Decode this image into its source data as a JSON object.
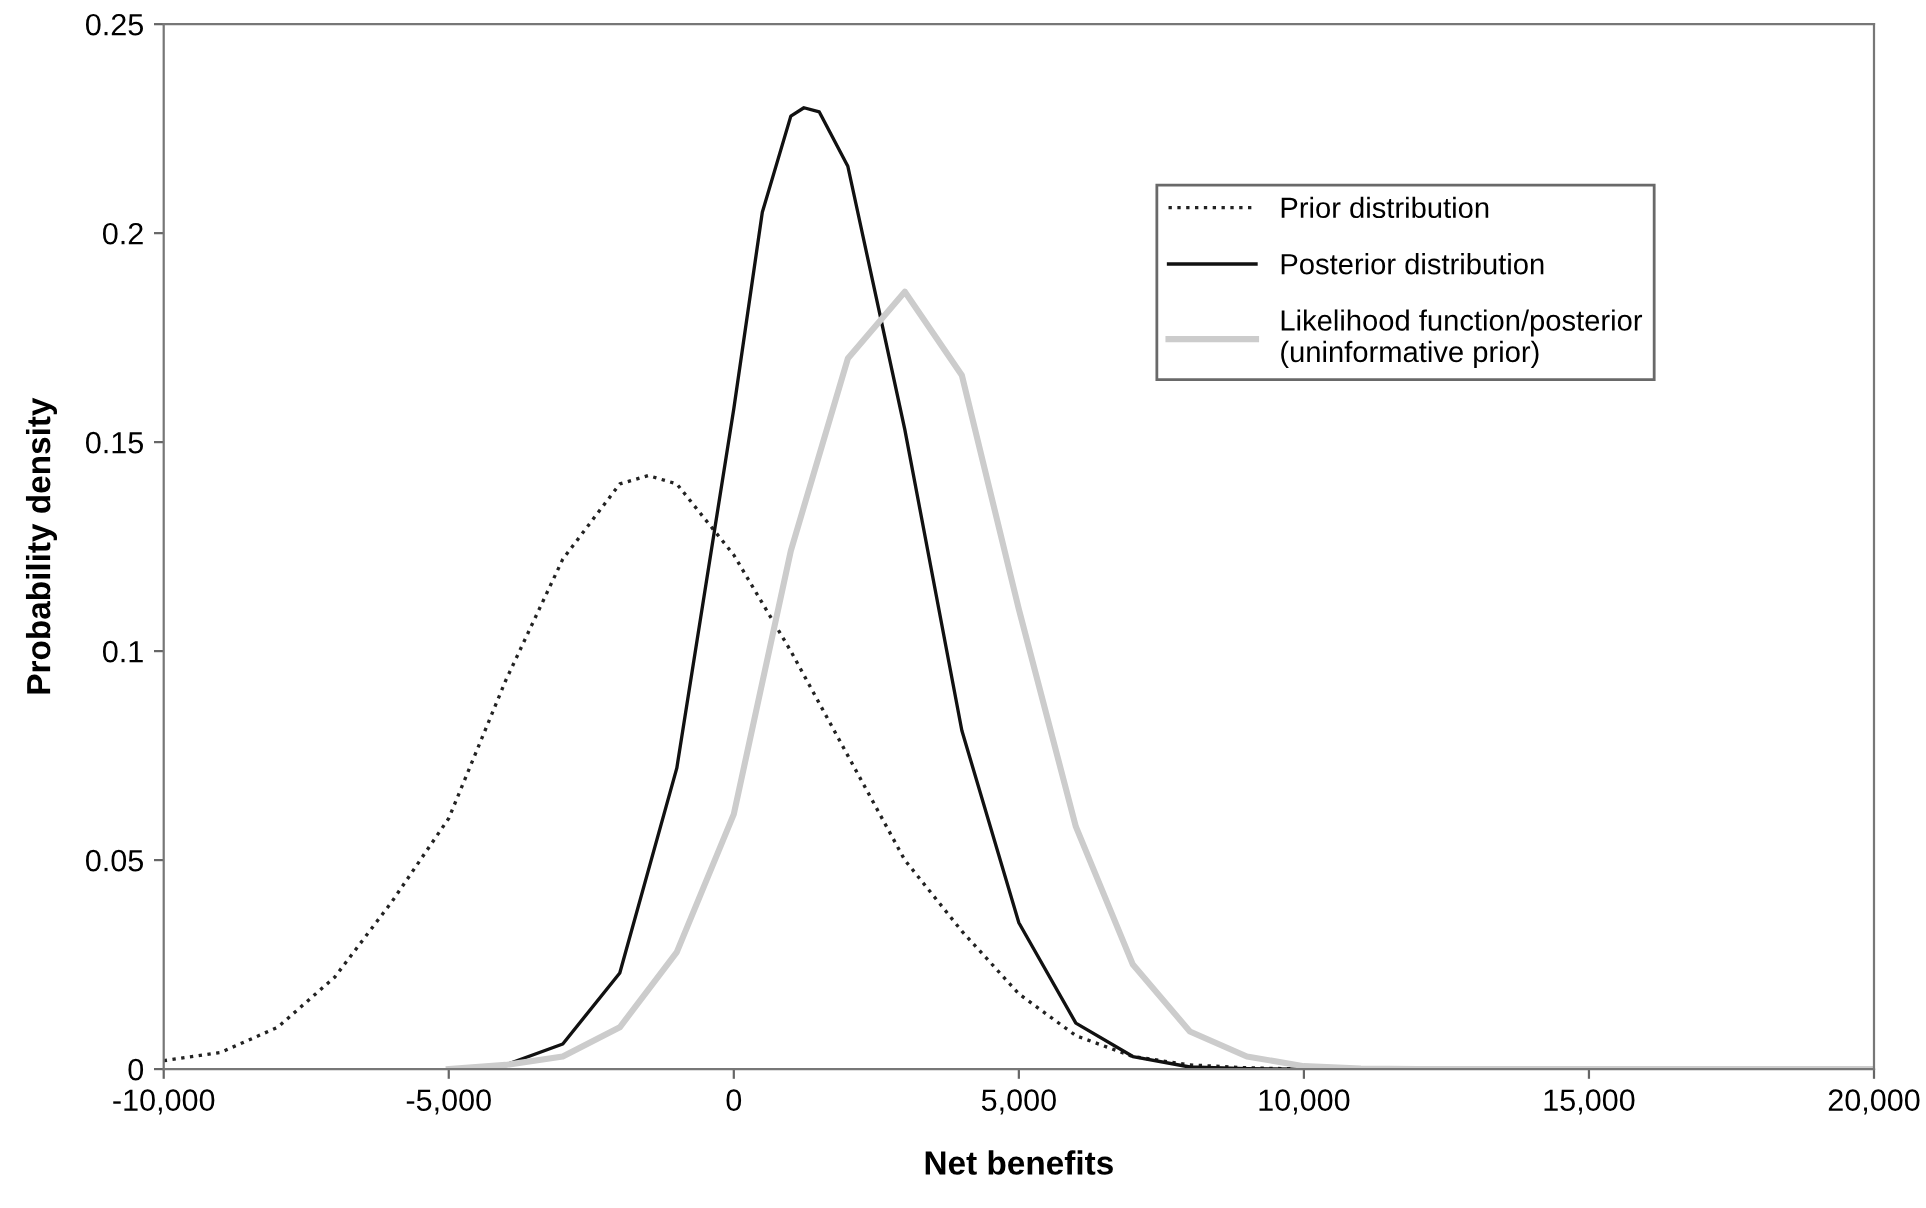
{
  "chart_data": {
    "type": "line",
    "xlabel": "Net benefits",
    "ylabel": "Probability density",
    "xlim": [
      -10000,
      20000
    ],
    "xticks": [
      {
        "value": -10000,
        "label": "-10,000"
      },
      {
        "value": -5000,
        "label": "-5,000"
      },
      0,
      {
        "value": 5000,
        "label": "5,000"
      },
      {
        "value": 10000,
        "label": "10,000"
      },
      {
        "value": 15000,
        "label": "15,000"
      },
      {
        "value": 20000,
        "label": "20,000"
      }
    ],
    "ylim": [
      0,
      0.25
    ],
    "yticks": [
      0,
      0.05,
      0.1,
      0.15,
      0.2,
      0.25
    ],
    "grid": false,
    "legend": "top right",
    "marker": "none",
    "series": [
      {
        "name": "Prior distribution",
        "color": "#222222",
        "line_style": "dotted",
        "x": [
          -10000,
          -9000,
          -8000,
          -7000,
          -6000,
          -5000,
          -4000,
          -3000,
          -2000,
          -1500,
          -1000,
          0,
          1000,
          2000,
          3000,
          4000,
          5000,
          6000,
          7000,
          8000,
          9000,
          10000
        ],
        "values": [
          0.002,
          0.004,
          0.01,
          0.022,
          0.04,
          0.06,
          0.093,
          0.122,
          0.14,
          0.142,
          0.14,
          0.123,
          0.1,
          0.075,
          0.05,
          0.033,
          0.018,
          0.008,
          0.003,
          0.001,
          0.0003,
          0
        ]
      },
      {
        "name": "Posterior distribution",
        "color": "#111111",
        "line_style": "solid",
        "x": [
          -5000,
          -4000,
          -3000,
          -2000,
          -1000,
          0,
          500,
          1000,
          1230,
          1500,
          2000,
          3000,
          4000,
          5000,
          6000,
          7000,
          8000,
          9000,
          10000
        ],
        "values": [
          0,
          0.001,
          0.006,
          0.023,
          0.072,
          0.158,
          0.205,
          0.228,
          0.23,
          0.229,
          0.216,
          0.153,
          0.081,
          0.035,
          0.011,
          0.003,
          0.0005,
          0.0001,
          0
        ]
      },
      {
        "name": "Likelihood function/posterior\n(uninformative prior)",
        "color": "#cccccc",
        "line_style": "solid",
        "x": [
          -5000,
          -4000,
          -3000,
          -2000,
          -1000,
          0,
          1000,
          2000,
          3000,
          4000,
          5000,
          6000,
          7000,
          8000,
          9000,
          10000,
          11000,
          12000,
          20000
        ],
        "values": [
          0,
          0.001,
          0.003,
          0.01,
          0.028,
          0.061,
          0.124,
          0.17,
          0.186,
          0.166,
          0.11,
          0.058,
          0.025,
          0.009,
          0.003,
          0.0007,
          0.0001,
          0,
          0
        ]
      }
    ]
  }
}
